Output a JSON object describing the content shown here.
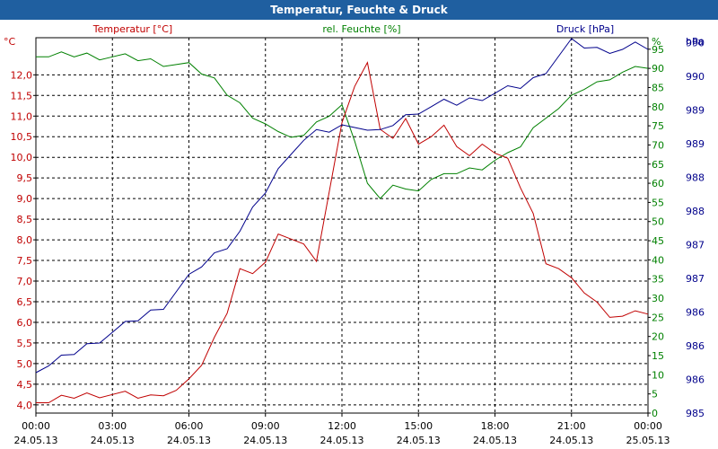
{
  "window": {
    "title": "Temperatur, Feuchte & Druck"
  },
  "chart_data": {
    "type": "line",
    "title": "Temperatur, Feuchte & Druck",
    "x_ticks": [
      {
        "time": "00:00",
        "date": "24.05.13"
      },
      {
        "time": "03:00",
        "date": "24.05.13"
      },
      {
        "time": "06:00",
        "date": "24.05.13"
      },
      {
        "time": "09:00",
        "date": "24.05.13"
      },
      {
        "time": "12:00",
        "date": "24.05.13"
      },
      {
        "time": "15:00",
        "date": "24.05.13"
      },
      {
        "time": "18:00",
        "date": "24.05.13"
      },
      {
        "time": "21:00",
        "date": "24.05.13"
      },
      {
        "time": "00:00",
        "date": "25.05.13"
      }
    ],
    "xlim_hours": [
      0,
      24
    ],
    "grid": true,
    "axes": {
      "temperature": {
        "label": "Temperatur [°C]",
        "unit": "°C",
        "ylim": [
          3.8,
          12.9
        ],
        "color": "#c00000",
        "ticks": [
          "4,0",
          "4,5",
          "5,0",
          "5,5",
          "6,0",
          "6,5",
          "7,0",
          "7,5",
          "8,0",
          "8,5",
          "9,0",
          "9,5",
          "10,0",
          "10,5",
          "11,0",
          "11,5",
          "12,0"
        ]
      },
      "humidity": {
        "label": "rel. Feuchte [%]",
        "unit": "%",
        "ylim": [
          0,
          98
        ],
        "color": "#008000",
        "ticks": [
          "0",
          "5",
          "10",
          "15",
          "20",
          "25",
          "30",
          "35",
          "40",
          "45",
          "50",
          "55",
          "60",
          "65",
          "70",
          "75",
          "80",
          "85",
          "90",
          "95"
        ]
      },
      "pressure": {
        "label": "Druck [hPa]",
        "unit": "hPa",
        "color": "#00008b",
        "ticks": [
          "985",
          "986",
          "986",
          "986",
          "987",
          "987",
          "988",
          "988",
          "989",
          "989",
          "990",
          "990"
        ]
      }
    },
    "series": [
      {
        "name": "Temperatur [°C]",
        "axis": "temperature",
        "color": "#c00000",
        "x": [
          0,
          0.5,
          1,
          1.5,
          2,
          2.5,
          3,
          3.5,
          4,
          4.5,
          5,
          5.5,
          6,
          6.5,
          7,
          7.5,
          8,
          8.5,
          9,
          9.5,
          10,
          10.5,
          11,
          11.5,
          12,
          12.5,
          13,
          13.5,
          14,
          14.5,
          15,
          15.5,
          16,
          16.5,
          17,
          17.5,
          18,
          18.5,
          19,
          19.5,
          20,
          20.5,
          21,
          21.5,
          22,
          22.5,
          23,
          23.5,
          24
        ],
        "values": [
          4.05,
          4.05,
          4.15,
          4.2,
          4.25,
          4.25,
          4.25,
          4.25,
          4.2,
          4.2,
          4.3,
          4.35,
          4.55,
          5.0,
          5.6,
          6.3,
          7.3,
          7.1,
          7.5,
          8.1,
          8.1,
          7.9,
          7.4,
          9.2,
          10.8,
          11.8,
          12.3,
          10.6,
          10.5,
          10.9,
          10.4,
          10.5,
          10.7,
          10.3,
          10.0,
          10.4,
          10.1,
          9.9,
          9.3,
          8.6,
          7.5,
          7.3,
          7.0,
          6.75,
          6.45,
          6.2,
          6.15,
          6.2,
          6.2
        ],
        "note": "series ends ~23.5h"
      },
      {
        "name": "rel. Feuchte [%]",
        "axis": "humidity",
        "color": "#008000",
        "x": [
          0,
          0.5,
          1,
          1.5,
          2,
          2.5,
          3,
          3.5,
          4,
          4.5,
          5,
          5.5,
          6,
          6.5,
          7,
          7.5,
          8,
          8.5,
          9,
          9.5,
          10,
          10.5,
          11,
          11.5,
          12,
          12.5,
          13,
          13.5,
          14,
          14.5,
          15,
          15.5,
          16,
          16.5,
          17,
          17.5,
          18,
          18.5,
          19,
          19.5,
          20,
          20.5,
          21,
          21.5,
          22,
          22.5,
          23,
          23.5,
          24
        ],
        "values": [
          93,
          93,
          93.3,
          93.5,
          93.5,
          93.2,
          93,
          92.8,
          92.5,
          92,
          91.5,
          91,
          90.5,
          89,
          87,
          84,
          81,
          76,
          76,
          73,
          73,
          72.5,
          75,
          78,
          80,
          72,
          60,
          55,
          60,
          58,
          59,
          61,
          61.5,
          63,
          63.5,
          64.5,
          66,
          67,
          70,
          74,
          78,
          79.5,
          82,
          85,
          86,
          88,
          89,
          89.5,
          90
        ]
      },
      {
        "name": "Druck [hPa]",
        "axis": "pressure",
        "color": "#00008b",
        "x": [
          0,
          0.5,
          1,
          1.5,
          2,
          2.5,
          3,
          3.5,
          4,
          4.5,
          5,
          5.5,
          6,
          6.5,
          7,
          7.5,
          8,
          8.5,
          9,
          9.5,
          10,
          10.5,
          11,
          11.5,
          12,
          12.5,
          13,
          13.5,
          14,
          14.5,
          15,
          15.5,
          16,
          16.5,
          17,
          17.5,
          18,
          18.5,
          19,
          19.5,
          20,
          20.5,
          21,
          21.5,
          22,
          22.5,
          23,
          23.5,
          24
        ],
        "values": [
          985.6,
          985.7,
          985.8,
          985.9,
          986.0,
          986.1,
          986.2,
          986.3,
          986.4,
          986.5,
          986.6,
          986.8,
          987.0,
          987.2,
          987.35,
          987.5,
          987.7,
          988.0,
          988.3,
          988.6,
          988.9,
          989.05,
          989.15,
          989.2,
          989.25,
          989.3,
          989.2,
          989.15,
          989.3,
          989.4,
          989.5,
          989.55,
          989.6,
          989.6,
          989.65,
          989.7,
          989.75,
          989.8,
          989.85,
          989.95,
          990.1,
          990.3,
          990.5,
          990.45,
          990.4,
          990.4,
          990.4,
          990.45,
          990.4
        ]
      }
    ]
  }
}
